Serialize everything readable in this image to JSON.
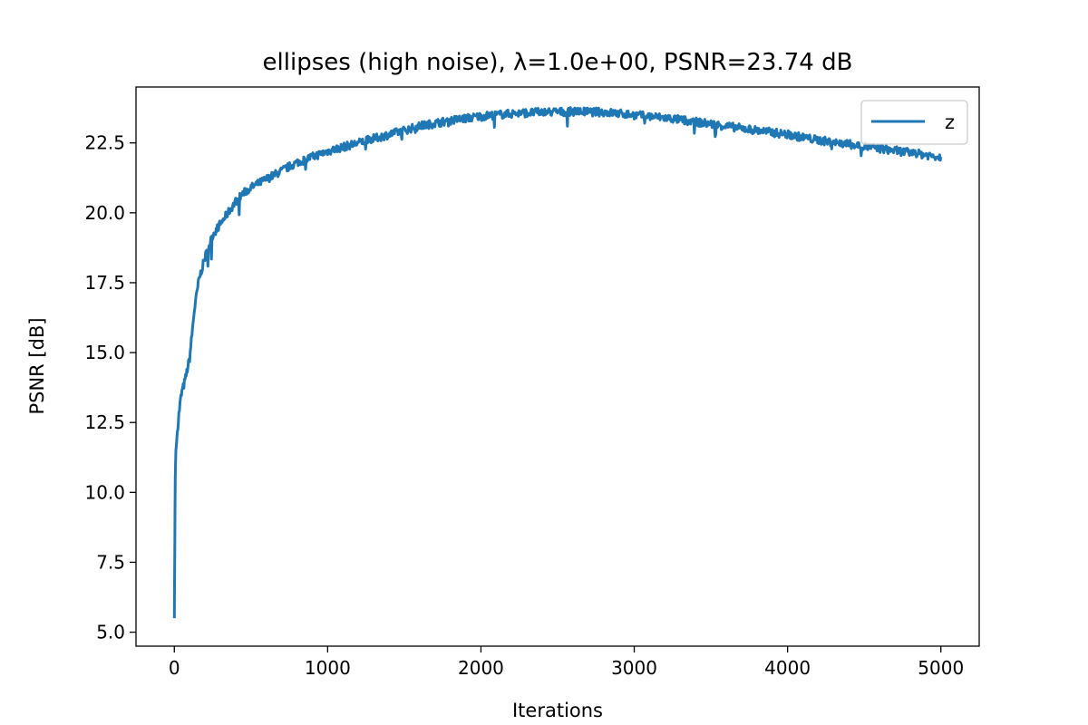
{
  "chart_data": {
    "type": "line",
    "title": "ellipses (high noise), λ=1.0e+00, PSNR=23.74 dB",
    "xlabel": "Iterations",
    "ylabel": "PSNR [dB]",
    "xlim": [
      -250,
      5250
    ],
    "ylim": [
      4.5,
      24.5
    ],
    "xticks": [
      0,
      1000,
      2000,
      3000,
      4000,
      5000
    ],
    "xtick_labels": [
      "0",
      "1000",
      "2000",
      "3000",
      "4000",
      "5000"
    ],
    "yticks": [
      5.0,
      7.5,
      10.0,
      12.5,
      15.0,
      17.5,
      20.0,
      22.5
    ],
    "ytick_labels": [
      "5.0",
      "7.5",
      "10.0",
      "12.5",
      "15.0",
      "17.5",
      "20.0",
      "22.5"
    ],
    "grid": false,
    "legend_position": "top-right",
    "noise_amplitude": 0.15,
    "series": [
      {
        "name": "z",
        "color": "#1f77b4",
        "x": [
          0,
          3,
          6,
          10,
          15,
          20,
          30,
          40,
          50,
          70,
          100,
          130,
          160,
          200,
          250,
          300,
          350,
          400,
          450,
          500,
          600,
          700,
          800,
          900,
          1000,
          1200,
          1400,
          1600,
          1800,
          2000,
          2200,
          2400,
          2600,
          2800,
          3000,
          3200,
          3400,
          3600,
          3800,
          4000,
          4200,
          4400,
          4600,
          4800,
          5000
        ],
        "y": [
          5.5,
          8.0,
          10.5,
          11.5,
          11.8,
          12.2,
          12.8,
          13.3,
          13.6,
          14.0,
          14.8,
          16.5,
          17.6,
          18.4,
          19.2,
          19.6,
          20.0,
          20.4,
          20.7,
          20.9,
          21.2,
          21.5,
          21.8,
          22.0,
          22.2,
          22.5,
          22.8,
          23.1,
          23.3,
          23.45,
          23.55,
          23.6,
          23.62,
          23.6,
          23.5,
          23.4,
          23.25,
          23.1,
          22.95,
          22.8,
          22.6,
          22.45,
          22.3,
          22.15,
          22.0
        ]
      }
    ]
  }
}
